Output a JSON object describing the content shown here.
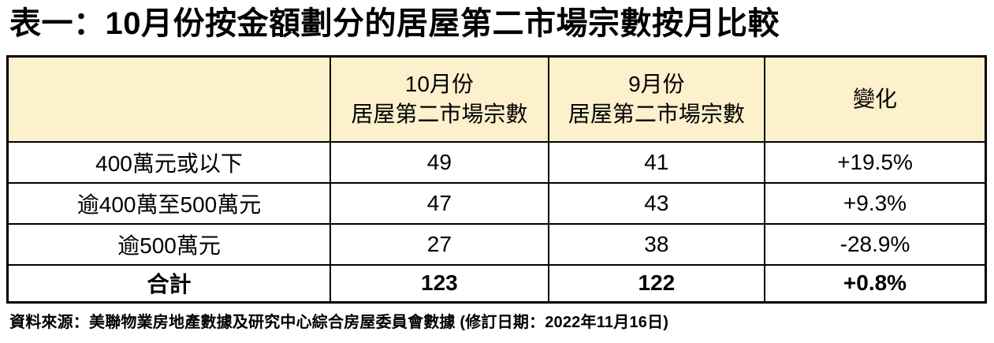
{
  "title": "表一：10月份按金額劃分的居屋第二市場宗數按月比較",
  "table": {
    "header": {
      "col_label": "",
      "col_october": "10月份\n居屋第二市場宗數",
      "col_september": "9月份\n居屋第二市場宗數",
      "col_change": "變化"
    },
    "rows": [
      {
        "label": "400萬元或以下",
        "october": "49",
        "september": "41",
        "change": "+19.5%"
      },
      {
        "label": "逾400萬至500萬元",
        "october": "47",
        "september": "43",
        "change": "+9.3%"
      },
      {
        "label": "逾500萬元",
        "october": "27",
        "september": "38",
        "change": "-28.9%"
      }
    ],
    "total_row": {
      "label": "合計",
      "october": "123",
      "september": "122",
      "change": "+0.8%"
    }
  },
  "footer": {
    "source": "資料來源：美聯物業房地產數據及研究中心綜合房屋委員會數據 (修訂日期：2022年11月16日)"
  },
  "colors": {
    "header_bg": "#FDF0CD",
    "border": "#000000",
    "text": "#000000",
    "background": "#FFFFFF"
  },
  "chart_data": {
    "type": "table",
    "title": "表一：10月份按金額劃分的居屋第二市場宗數按月比較",
    "categories": [
      "400萬元或以下",
      "逾400萬至500萬元",
      "逾500萬元",
      "合計"
    ],
    "series": [
      {
        "name": "10月份居屋第二市場宗數",
        "values": [
          49,
          47,
          27,
          123
        ]
      },
      {
        "name": "9月份居屋第二市場宗數",
        "values": [
          41,
          43,
          38,
          122
        ]
      },
      {
        "name": "變化",
        "values": [
          "+19.5%",
          "+9.3%",
          "-28.9%",
          "+0.8%"
        ]
      }
    ],
    "source_note": "資料來源：美聯物業房地產數據及研究中心綜合房屋委員會數據 (修訂日期：2022年11月16日)"
  }
}
